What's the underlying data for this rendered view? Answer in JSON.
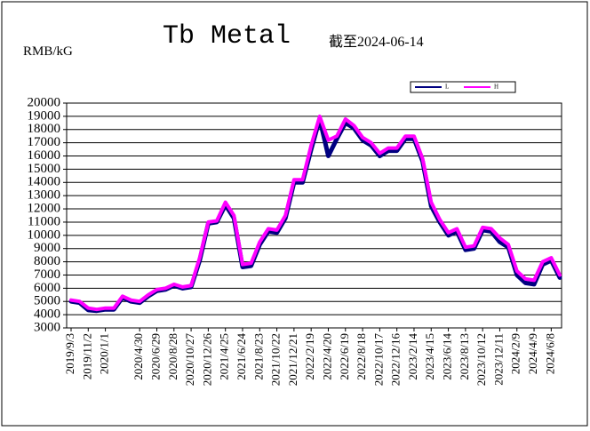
{
  "chart_data": {
    "type": "line",
    "title": "Tb Metal",
    "subtitle": "截至2024-06-14",
    "y_label": "RMB/kG",
    "categories": [
      "2019/9/3",
      null,
      "2019/11/2",
      null,
      "2020/1/1",
      null,
      null,
      null,
      "2020/4/30",
      null,
      "2020/6/29",
      null,
      "2020/8/28",
      null,
      "2020/10/27",
      null,
      "2020/12/26",
      null,
      "2021/4/25",
      null,
      "2021/6/24",
      null,
      "2021/8/23",
      null,
      "2021/10/22",
      null,
      "2021/12/21",
      null,
      "2022/2/19",
      null,
      "2022/4/20",
      null,
      "2022/6/19",
      null,
      "2022/8/18",
      null,
      "2022/10/17",
      null,
      "2022/12/16",
      null,
      "2023/2/14",
      null,
      "2023/4/15",
      null,
      "2023/6/14",
      null,
      "2023/8/13",
      null,
      "2023/10/12",
      null,
      "2023/12/11",
      null,
      "2024/2/9",
      null,
      "2024/4/9",
      null,
      "2024/6/8",
      null
    ],
    "series": [
      {
        "name": "L",
        "color": "#000080",
        "values": [
          5000,
          4900,
          4350,
          4300,
          4400,
          4400,
          5300,
          5000,
          4900,
          5400,
          5800,
          5900,
          6200,
          6000,
          6100,
          8100,
          10900,
          11000,
          12300,
          11300,
          7600,
          7700,
          9300,
          10300,
          10200,
          11300,
          14000,
          14000,
          16500,
          18800,
          16000,
          17300,
          18500,
          18100,
          17200,
          16800,
          16000,
          16400,
          16400,
          17300,
          17300,
          15600,
          12200,
          11000,
          10000,
          10300,
          8900,
          9000,
          10400,
          10300,
          9500,
          9100,
          7000,
          6400,
          6300,
          7800,
          8100,
          6800
        ]
      },
      {
        "name": "H",
        "color": "#ff00ff",
        "values": [
          5100,
          5000,
          4500,
          4400,
          4500,
          4500,
          5400,
          5100,
          5000,
          5500,
          5900,
          6000,
          6300,
          6100,
          6200,
          8300,
          11000,
          11100,
          12500,
          11500,
          7800,
          7900,
          9500,
          10500,
          10400,
          11500,
          14200,
          14200,
          16800,
          19000,
          17200,
          17500,
          18800,
          18300,
          17400,
          17000,
          16200,
          16600,
          16600,
          17500,
          17500,
          15800,
          12500,
          11200,
          10200,
          10500,
          9100,
          9200,
          10600,
          10500,
          9800,
          9300,
          7300,
          6700,
          6600,
          8000,
          8300,
          7000
        ]
      }
    ],
    "ylim": [
      3000,
      20000
    ],
    "yticks": [
      3000,
      4000,
      5000,
      6000,
      7000,
      8000,
      9000,
      10000,
      11000,
      12000,
      13000,
      14000,
      15000,
      16000,
      17000,
      18000,
      19000,
      20000
    ],
    "grid": true,
    "legend": "top-right"
  }
}
